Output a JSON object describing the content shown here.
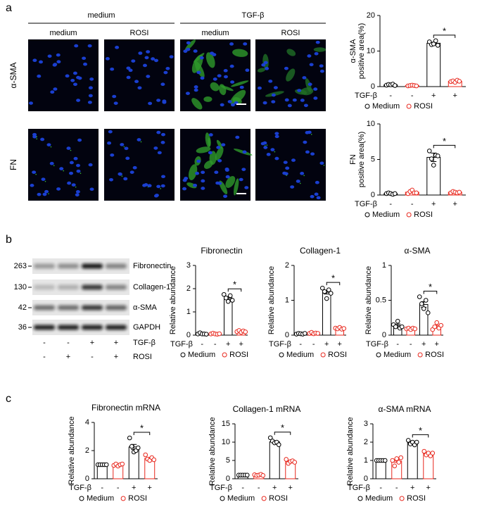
{
  "panel_labels": [
    "a",
    "b",
    "c"
  ],
  "images": {
    "groups": [
      "medium",
      "TGF-β"
    ],
    "columns": [
      "medium",
      "ROSI",
      "medium",
      "ROSI"
    ],
    "rows": [
      "α-SMA",
      "FN"
    ]
  },
  "blot": {
    "markers": [
      "263",
      "130",
      "42",
      "36"
    ],
    "proteins": [
      "Fibronectin",
      "Collagen-1",
      "α-SMA",
      "GAPDH"
    ],
    "conditions": [
      {
        "label": "TGF-β",
        "signs": [
          "-",
          "-",
          "+",
          "+"
        ]
      },
      {
        "label": "ROSI",
        "signs": [
          "-",
          "+",
          "-",
          "+"
        ]
      }
    ]
  },
  "chart_data": [
    {
      "type": "bar",
      "ylabel": [
        "α-SMA",
        "positive area(%)"
      ],
      "xlabel": "TGF-β",
      "categories": [
        "-",
        "+"
      ],
      "annotation": "*",
      "ylim": [
        0,
        20
      ],
      "yticks": [
        0,
        10,
        20
      ],
      "series": [
        {
          "name": "Medium",
          "color": "#000000",
          "values": [
            0.5,
            12.2
          ],
          "errors": [
            0.1,
            0.3
          ],
          "points": [
            [
              0.4,
              0.6,
              0.5,
              0.7,
              0.3
            ],
            [
              12.6,
              11.8,
              12.0,
              12.9,
              11.6
            ]
          ]
        },
        {
          "name": "ROSI",
          "color": "#e8281e",
          "values": [
            0.3,
            1.5
          ],
          "errors": [
            0.05,
            0.1
          ],
          "points": [
            [
              0.2,
              0.3,
              0.4,
              0.3,
              0.2
            ],
            [
              1.4,
              1.6,
              1.2,
              1.8,
              1.5
            ]
          ]
        }
      ]
    },
    {
      "type": "bar",
      "ylabel": [
        "FN",
        "positive area(%)"
      ],
      "xlabel": "TGF-β",
      "categories": [
        "-",
        "+"
      ],
      "annotation": "*",
      "ylim": [
        0,
        10
      ],
      "yticks": [
        0,
        5,
        10
      ],
      "series": [
        {
          "name": "Medium",
          "color": "#000000",
          "values": [
            0.2,
            5.3
          ],
          "errors": [
            0.05,
            0.6
          ],
          "points": [
            [
              0.2,
              0.3,
              0.2,
              0.1,
              0.2
            ],
            [
              6.2,
              5.1,
              4.2,
              5.6,
              5.5
            ]
          ]
        },
        {
          "name": "ROSI",
          "color": "#e8281e",
          "values": [
            0.4,
            0.4
          ],
          "errors": [
            0.1,
            0.05
          ],
          "points": [
            [
              0.2,
              0.5,
              0.7,
              0.3,
              0.3
            ],
            [
              0.3,
              0.5,
              0.4,
              0.3,
              0.4
            ]
          ]
        }
      ]
    },
    {
      "type": "bar",
      "title": "Fibronectin",
      "ylabel": [
        "Relative abundance"
      ],
      "xlabel": "TGF-β",
      "categories": [
        "-",
        "+"
      ],
      "annotation": "*",
      "ylim": [
        0,
        3
      ],
      "yticks": [
        0,
        1,
        2,
        3
      ],
      "series": [
        {
          "name": "Medium",
          "color": "#000000",
          "values": [
            0.06,
            1.6
          ],
          "errors": [
            0.01,
            0.06
          ],
          "points": [
            [
              0.05,
              0.1,
              0.05,
              0.05,
              0.04
            ],
            [
              1.75,
              1.6,
              1.45,
              1.7,
              1.5
            ]
          ]
        },
        {
          "name": "ROSI",
          "color": "#e8281e",
          "values": [
            0.06,
            0.16
          ],
          "errors": [
            0.01,
            0.02
          ],
          "points": [
            [
              0.05,
              0.08,
              0.05,
              0.04,
              0.06
            ],
            [
              0.15,
              0.2,
              0.12,
              0.18,
              0.14
            ]
          ]
        }
      ]
    },
    {
      "type": "bar",
      "title": "Collagen-1",
      "ylabel": [
        "Relative abundance"
      ],
      "xlabel": "TGF-β",
      "categories": [
        "-",
        "+"
      ],
      "annotation": "*",
      "ylim": [
        0,
        2
      ],
      "yticks": [
        0,
        1,
        2
      ],
      "series": [
        {
          "name": "Medium",
          "color": "#000000",
          "values": [
            0.04,
            1.23
          ],
          "errors": [
            0.005,
            0.05
          ],
          "points": [
            [
              0.03,
              0.05,
              0.04,
              0.03,
              0.05
            ],
            [
              1.35,
              1.25,
              1.05,
              1.3,
              1.2
            ]
          ]
        },
        {
          "name": "ROSI",
          "color": "#e8281e",
          "values": [
            0.06,
            0.19
          ],
          "errors": [
            0.01,
            0.01
          ],
          "points": [
            [
              0.05,
              0.08,
              0.04,
              0.06,
              0.05
            ],
            [
              0.2,
              0.18,
              0.22,
              0.17,
              0.19
            ]
          ]
        }
      ]
    },
    {
      "type": "bar",
      "title": "α-SMA",
      "ylabel": [
        "Relative abundance"
      ],
      "xlabel": "TGF-β",
      "categories": [
        "-",
        "+"
      ],
      "annotation": "*",
      "ylim": [
        0,
        1
      ],
      "yticks": [
        0,
        0.5,
        1
      ],
      "series": [
        {
          "name": "Medium",
          "color": "#000000",
          "values": [
            0.14,
            0.44
          ],
          "errors": [
            0.02,
            0.04
          ],
          "points": [
            [
              0.15,
              0.12,
              0.2,
              0.1,
              0.12
            ],
            [
              0.55,
              0.45,
              0.38,
              0.5,
              0.32
            ]
          ]
        },
        {
          "name": "ROSI",
          "color": "#e8281e",
          "values": [
            0.09,
            0.12
          ],
          "errors": [
            0.005,
            0.02
          ],
          "points": [
            [
              0.09,
              0.1,
              0.08,
              0.1,
              0.09
            ],
            [
              0.08,
              0.12,
              0.18,
              0.1,
              0.14
            ]
          ]
        }
      ]
    },
    {
      "type": "bar",
      "title": "Fibronectin mRNA",
      "ylabel": [
        "Relative abundance"
      ],
      "xlabel": "TGF-β",
      "categories": [
        "-",
        "+"
      ],
      "annotation": "*",
      "ylim": [
        0,
        4
      ],
      "yticks": [
        0,
        2,
        4
      ],
      "series": [
        {
          "name": "Medium",
          "color": "#000000",
          "values": [
            1.0,
            2.26
          ],
          "errors": [
            0,
            0.18
          ],
          "points": [
            [
              1,
              1,
              1,
              1,
              1
            ],
            [
              2.9,
              2.3,
              1.9,
              2.0,
              2.2
            ]
          ]
        },
        {
          "name": "ROSI",
          "color": "#e8281e",
          "values": [
            0.99,
            1.45
          ],
          "errors": [
            0.03,
            0.07
          ],
          "points": [
            [
              0.95,
              1.05,
              0.9,
              1.0,
              1.05
            ],
            [
              1.7,
              1.4,
              1.3,
              1.5,
              1.35
            ]
          ]
        }
      ]
    },
    {
      "type": "bar",
      "title": "Collagen-1 mRNA",
      "ylabel": [
        "Relative abundance"
      ],
      "xlabel": "TGF-β",
      "categories": [
        "-",
        "+"
      ],
      "annotation": "*",
      "ylim": [
        0,
        15
      ],
      "yticks": [
        0,
        5,
        10,
        15
      ],
      "series": [
        {
          "name": "Medium",
          "color": "#000000",
          "values": [
            1.0,
            10.1
          ],
          "errors": [
            0,
            0.3
          ],
          "points": [
            [
              1,
              1,
              1,
              1,
              1
            ],
            [
              11.2,
              10.3,
              9.8,
              10.0,
              9.3
            ]
          ]
        },
        {
          "name": "ROSI",
          "color": "#e8281e",
          "values": [
            1.02,
            4.7
          ],
          "errors": [
            0.06,
            0.2
          ],
          "points": [
            [
              1.1,
              0.9,
              1.0,
              1.2,
              0.9
            ],
            [
              5.3,
              4.2,
              4.7,
              4.9,
              4.5
            ]
          ]
        }
      ]
    },
    {
      "type": "bar",
      "title": "α-SMA mRNA",
      "ylabel": [
        "Relative abundance"
      ],
      "xlabel": "TGF-β",
      "categories": [
        "-",
        "+"
      ],
      "annotation": "*",
      "ylim": [
        0,
        3
      ],
      "yticks": [
        0,
        1,
        2,
        3
      ],
      "series": [
        {
          "name": "Medium",
          "color": "#000000",
          "values": [
            1.0,
            1.97
          ],
          "errors": [
            0,
            0.05
          ],
          "points": [
            [
              1,
              1,
              1,
              1,
              1
            ],
            [
              2.1,
              1.9,
              2.0,
              1.85,
              2.0
            ]
          ]
        },
        {
          "name": "ROSI",
          "color": "#e8281e",
          "values": [
            0.97,
            1.37
          ],
          "errors": [
            0.08,
            0.05
          ],
          "points": [
            [
              1.0,
              0.7,
              1.1,
              0.9,
              1.15
            ],
            [
              1.5,
              1.3,
              1.4,
              1.25,
              1.4
            ]
          ]
        }
      ]
    }
  ]
}
